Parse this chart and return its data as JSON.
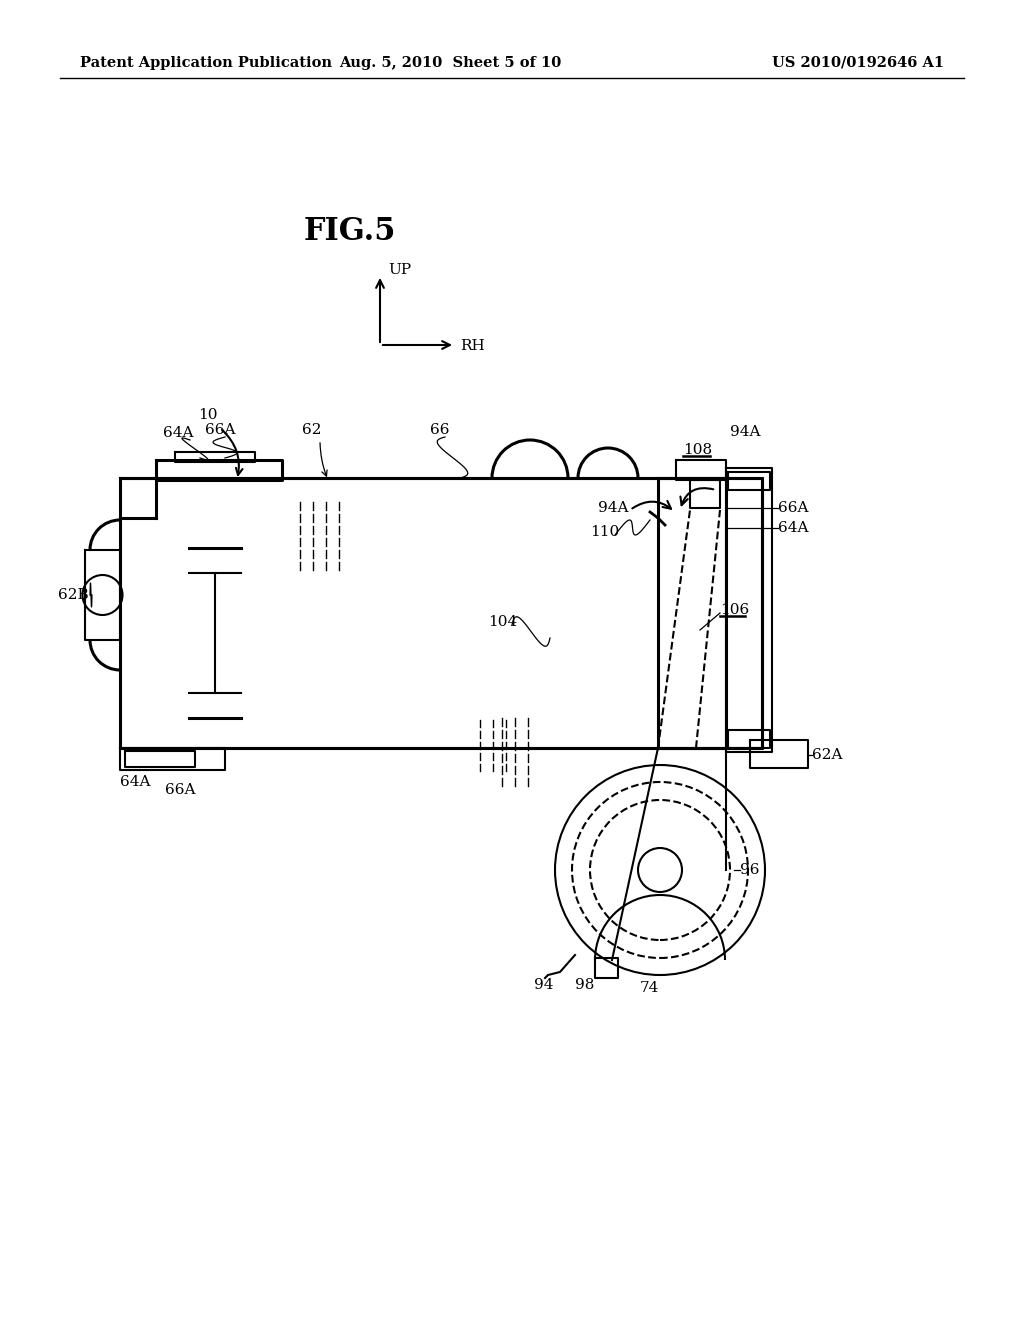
{
  "background_color": "#ffffff",
  "header_left": "Patent Application Publication",
  "header_center": "Aug. 5, 2010  Sheet 5 of 10",
  "header_right": "US 2010/0192646 A1",
  "fig_title": "FIG.5",
  "header_fontsize": 10.5,
  "fig_title_fontsize": 22,
  "label_fontsize": 11
}
